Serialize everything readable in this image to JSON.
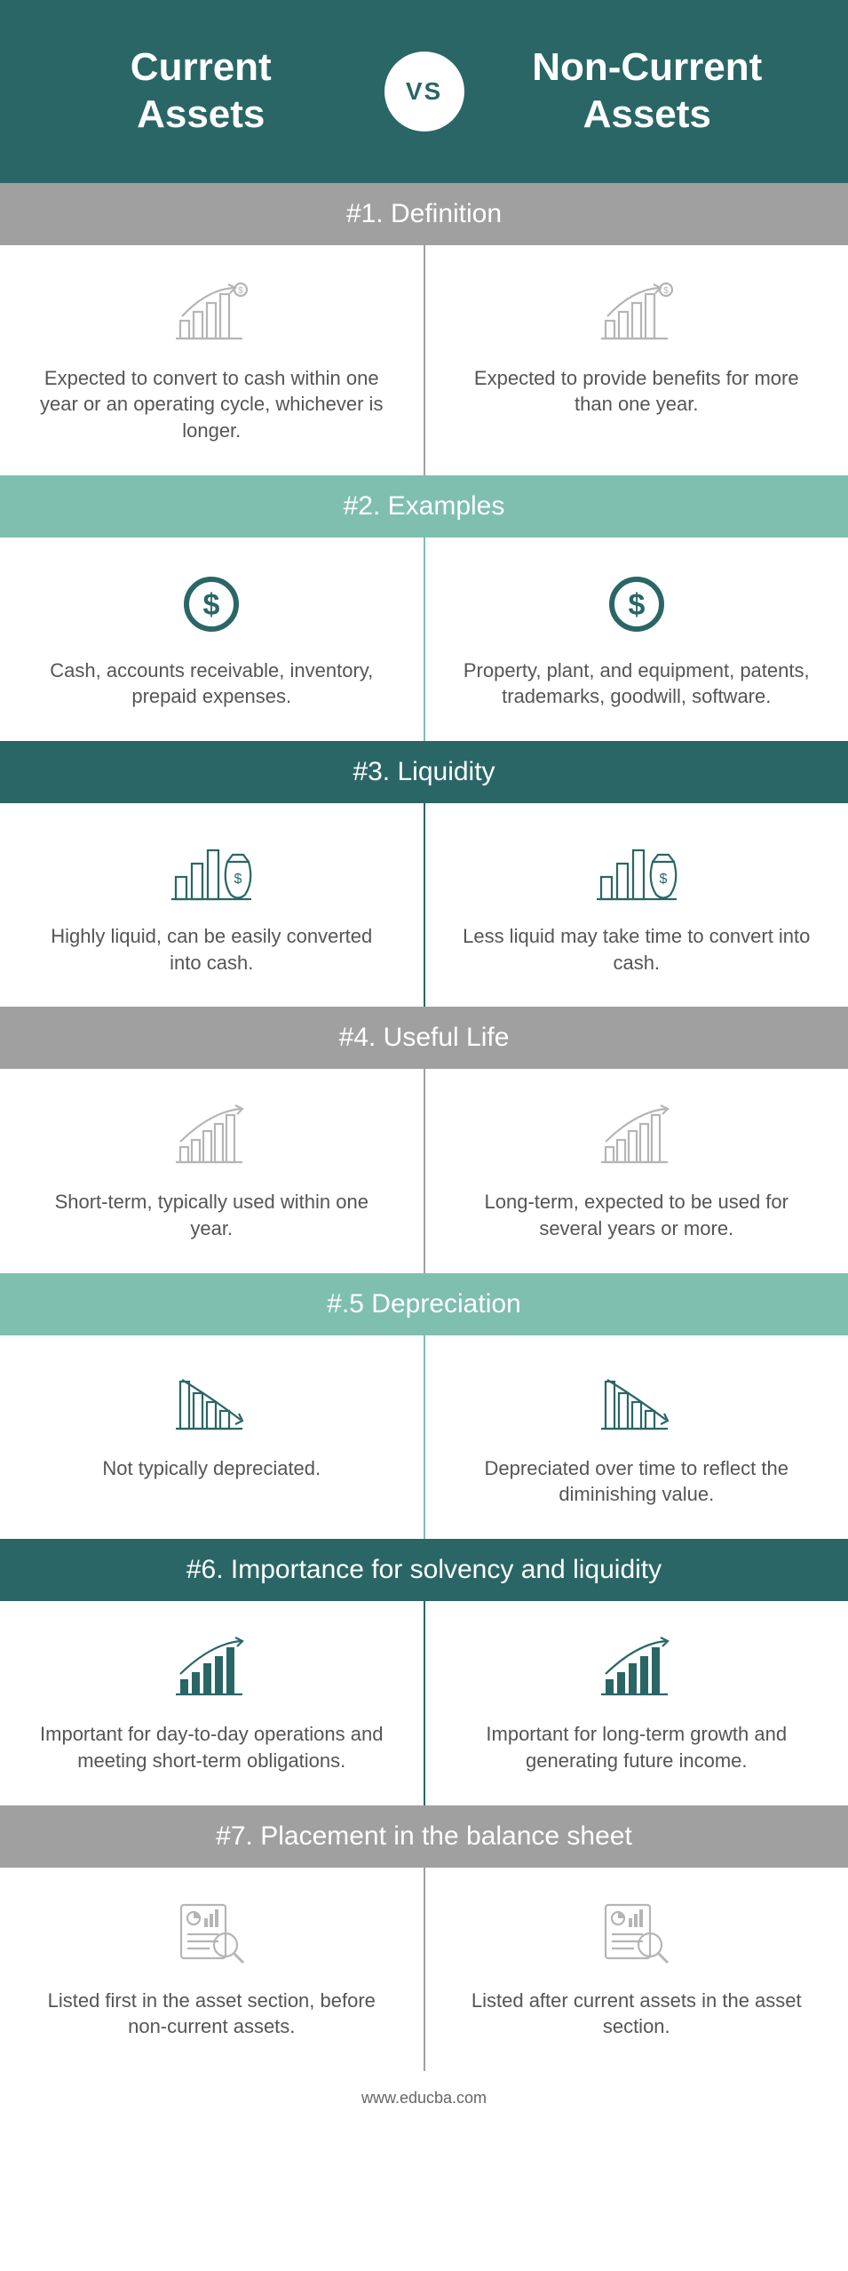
{
  "colors": {
    "teal_dark": "#2a6666",
    "teal_mid": "#7fbfb0",
    "gray": "#a0a0a0",
    "icon_gray": "#b5b5b5",
    "icon_teal": "#2a6666",
    "text": "#555555"
  },
  "header": {
    "left_title_line1": "Current",
    "left_title_line2": "Assets",
    "right_title_line1": "Non-Current",
    "right_title_line2": "Assets",
    "vs": "VS",
    "bg": "#2a6666",
    "vs_color": "#2a6666"
  },
  "sections": [
    {
      "title": "#1. Definition",
      "header_bg": "#a0a0a0",
      "divider": "#a0a0a0",
      "icon": "barchart_arrow_dollar",
      "icon_color": "#b5b5b5",
      "left": "Expected to convert to cash within one year or an operating cycle, whichever is longer.",
      "right": "Expected to provide benefits for more than one year."
    },
    {
      "title": "#2. Examples",
      "header_bg": "#7fbfb0",
      "divider": "#7fbfb0",
      "icon": "dollar_circle",
      "icon_color": "#2a6666",
      "left": "Cash, accounts receivable, inventory, prepaid expenses.",
      "right": "Property, plant, and equipment, patents, trademarks, goodwill, software."
    },
    {
      "title": "#3. Liquidity",
      "header_bg": "#2a6666",
      "divider": "#2a6666",
      "icon": "bars_moneybag",
      "icon_color": "#2a6666",
      "left": "Highly liquid, can be easily converted into cash.",
      "right": "Less liquid may take time to convert into cash."
    },
    {
      "title": "#4. Useful Life",
      "header_bg": "#a0a0a0",
      "divider": "#a0a0a0",
      "icon": "barchart_arrow_up",
      "icon_color": "#b5b5b5",
      "left": "Short-term, typically used within one year.",
      "right": "Long-term, expected to be used for several years or more."
    },
    {
      "title": "#.5 Depreciation",
      "header_bg": "#7fbfb0",
      "divider": "#7fbfb0",
      "icon": "barchart_arrow_down",
      "icon_color": "#2a6666",
      "left": "Not typically depreciated.",
      "right": "Depreciated over time to reflect the diminishing value."
    },
    {
      "title": "#6. Importance for solvency and liquidity",
      "header_bg": "#2a6666",
      "divider": "#2a6666",
      "icon": "barchart_arrow_up_filled",
      "icon_color": "#2a6666",
      "left": "Important for day-to-day operations and meeting short-term obligations.",
      "right": "Important for long-term growth and generating future income."
    },
    {
      "title": "#7. Placement in the balance sheet",
      "header_bg": "#a0a0a0",
      "divider": "#a0a0a0",
      "icon": "report_magnifier",
      "icon_color": "#b5b5b5",
      "left": "Listed first in the asset section, before non-current assets.",
      "right": "Listed after current assets in the asset section."
    }
  ],
  "footer": "www.educba.com"
}
